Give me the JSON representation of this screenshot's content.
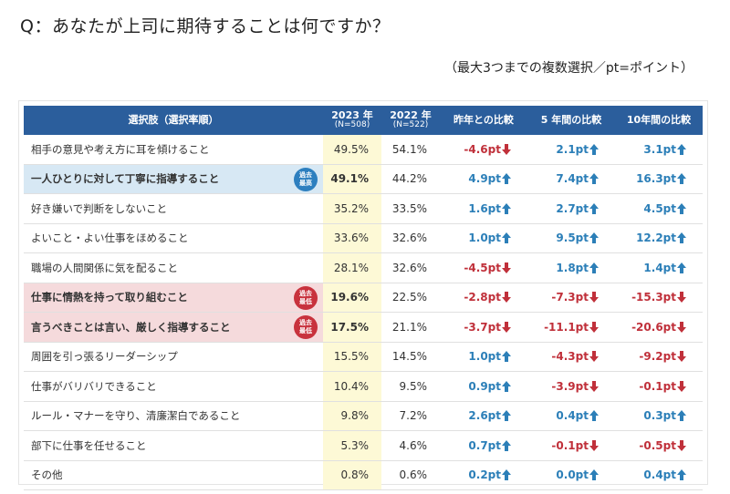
{
  "question": "Q：あなたが上司に期待することは何ですか？",
  "note": "（最大3つまでの複数選択／pt=ポイント）",
  "colors": {
    "header": "#2b5e9c",
    "positive": "#2c7fb8",
    "negative": "#c0303a",
    "best": "#2d7fbf",
    "worst": "#c8323d",
    "col2023": "#fdf9d6"
  },
  "chart_data": {
    "type": "table",
    "columns": [
      {
        "label": "選択肢（選択率順）",
        "sub": ""
      },
      {
        "label": "2023 年",
        "sub": "(N=508)"
      },
      {
        "label": "2022 年",
        "sub": "(N=522)"
      },
      {
        "label": "昨年との比較",
        "sub": ""
      },
      {
        "label": "5 年間の比較",
        "sub": ""
      },
      {
        "label": "10年間の比較",
        "sub": ""
      }
    ],
    "badges": {
      "best": [
        "過去",
        "最高"
      ],
      "worst": [
        "過去",
        "最低"
      ]
    },
    "rows": [
      {
        "label": "相手の意見や考え方に耳を傾けること",
        "v2023": "49.5%",
        "v2022": "54.1%",
        "d1": "-4.6pt",
        "d5": "2.1pt",
        "d10": "3.1pt",
        "badge": ""
      },
      {
        "label": "一人ひとりに対して丁寧に指導すること",
        "v2023": "49.1%",
        "v2022": "44.2%",
        "d1": "4.9pt",
        "d5": "7.4pt",
        "d10": "16.3pt",
        "badge": "best"
      },
      {
        "label": "好き嫌いで判断をしないこと",
        "v2023": "35.2%",
        "v2022": "33.5%",
        "d1": "1.6pt",
        "d5": "2.7pt",
        "d10": "4.5pt",
        "badge": ""
      },
      {
        "label": "よいこと・よい仕事をほめること",
        "v2023": "33.6%",
        "v2022": "32.6%",
        "d1": "1.0pt",
        "d5": "9.5pt",
        "d10": "12.2pt",
        "badge": ""
      },
      {
        "label": "職場の人間関係に気を配ること",
        "v2023": "28.1%",
        "v2022": "32.6%",
        "d1": "-4.5pt",
        "d5": "1.8pt",
        "d10": "1.4pt",
        "badge": ""
      },
      {
        "label": "仕事に情熱を持って取り組むこと",
        "v2023": "19.6%",
        "v2022": "22.5%",
        "d1": "-2.8pt",
        "d5": "-7.3pt",
        "d10": "-15.3pt",
        "badge": "worst"
      },
      {
        "label": "言うべきことは言い、厳しく指導すること",
        "v2023": "17.5%",
        "v2022": "21.1%",
        "d1": "-3.7pt",
        "d5": "-11.1pt",
        "d10": "-20.6pt",
        "badge": "worst"
      },
      {
        "label": "周囲を引っ張るリーダーシップ",
        "v2023": "15.5%",
        "v2022": "14.5%",
        "d1": "1.0pt",
        "d5": "-4.3pt",
        "d10": "-9.2pt",
        "badge": ""
      },
      {
        "label": "仕事がバリバリできること",
        "v2023": "10.4%",
        "v2022": "9.5%",
        "d1": "0.9pt",
        "d5": "-3.9pt",
        "d10": "-0.1pt",
        "badge": ""
      },
      {
        "label": "ルール・マナーを守り、清廉潔白であること",
        "v2023": "9.8%",
        "v2022": "7.2%",
        "d1": "2.6pt",
        "d5": "0.4pt",
        "d10": "0.3pt",
        "badge": ""
      },
      {
        "label": "部下に仕事を任せること",
        "v2023": "5.3%",
        "v2022": "4.6%",
        "d1": "0.7pt",
        "d5": "-0.1pt",
        "d10": "-0.5pt",
        "badge": ""
      },
      {
        "label": "その他",
        "v2023": "0.8%",
        "v2022": "0.6%",
        "d1": "0.2pt",
        "d5": "0.0pt",
        "d10": "0.4pt",
        "badge": ""
      }
    ]
  }
}
